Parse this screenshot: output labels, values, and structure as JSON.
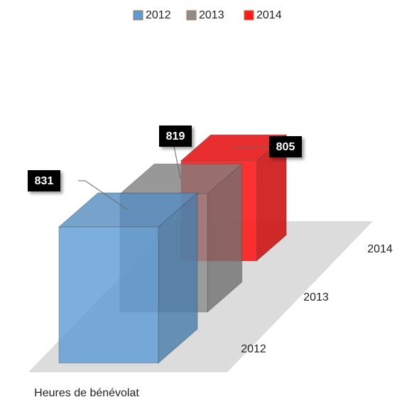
{
  "chart_data": {
    "type": "bar3d",
    "categories": [
      "Heures de bénévolat"
    ],
    "series": [
      {
        "name": "2012",
        "color": "#5b9bd5",
        "values": [
          831
        ]
      },
      {
        "name": "2013",
        "color": "#8c8c8c",
        "values": [
          819
        ]
      },
      {
        "name": "2014",
        "color": "#ff1a1a",
        "values": [
          805
        ]
      }
    ],
    "legend": "top"
  }
}
